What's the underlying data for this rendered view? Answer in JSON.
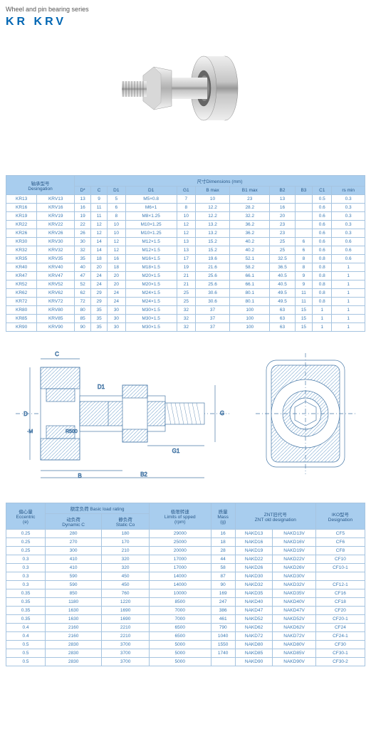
{
  "page": {
    "subtitle": "Wheel and pin bearing series",
    "title": "KR   KRV"
  },
  "table1": {
    "colors": {
      "header_bg": "#a8cdee",
      "border": "#a6c4e0",
      "text": "#3a7ab5"
    },
    "group_headers": {
      "designation": "轴承型号\nDesingation",
      "dimensions": "尺寸Dimensions (mm)"
    },
    "columns": [
      "D*",
      "C",
      "D1",
      "D1",
      "G1",
      "B max",
      "B1 max",
      "B2",
      "B3",
      "C1",
      "rs min"
    ],
    "rows": [
      [
        "KR13",
        "KRV13",
        "13",
        "9",
        "5",
        "M5×0.8",
        "7",
        "10",
        "23",
        "13",
        "",
        "0.5",
        "0.3"
      ],
      [
        "KR16",
        "KRV16",
        "16",
        "11",
        "6",
        "M6×1",
        "8",
        "12.2",
        "28.2",
        "16",
        "",
        "0.6",
        "0.3"
      ],
      [
        "KR19",
        "KRV19",
        "19",
        "11",
        "8",
        "M8×1.25",
        "10",
        "12.2",
        "32.2",
        "20",
        "",
        "0.6",
        "0.3"
      ],
      [
        "KR22",
        "KRV22",
        "22",
        "12",
        "10",
        "M10×1.25",
        "12",
        "13.2",
        "36.2",
        "23",
        "",
        "0.6",
        "0.3"
      ],
      [
        "KR26",
        "KRV26",
        "26",
        "12",
        "10",
        "M10×1.25",
        "12",
        "13.2",
        "36.2",
        "23",
        "",
        "0.6",
        "0.3"
      ],
      [
        "KR30",
        "KRV30",
        "30",
        "14",
        "12",
        "M12×1.5",
        "13",
        "15.2",
        "40.2",
        "25",
        "6",
        "0.6",
        "0.6"
      ],
      [
        "KR32",
        "KRV32",
        "32",
        "14",
        "12",
        "M12×1.5",
        "13",
        "15.2",
        "40.2",
        "25",
        "6",
        "0.6",
        "0.6"
      ],
      [
        "KR35",
        "KRV35",
        "35",
        "18",
        "16",
        "M16×1.5",
        "17",
        "19.6",
        "52.1",
        "32.5",
        "8",
        "0.8",
        "0.6"
      ],
      [
        "KR40",
        "KRV40",
        "40",
        "20",
        "18",
        "M18×1.5",
        "19",
        "21.6",
        "58.2",
        "36.5",
        "8",
        "0.8",
        "1"
      ],
      [
        "KR47",
        "KRV47",
        "47",
        "24",
        "20",
        "M20×1.5",
        "21",
        "25.6",
        "66.1",
        "40.5",
        "9",
        "0.8",
        "1"
      ],
      [
        "KR52",
        "KRV52",
        "52",
        "24",
        "20",
        "M20×1.5",
        "21",
        "25.6",
        "66.1",
        "40.5",
        "9",
        "0.8",
        "1"
      ],
      [
        "KR62",
        "KRV62",
        "62",
        "29",
        "24",
        "M24×1.5",
        "25",
        "30.6",
        "80.1",
        "49.5",
        "11",
        "0.8",
        "1"
      ],
      [
        "KR72",
        "KRV72",
        "72",
        "29",
        "24",
        "M24×1.5",
        "25",
        "30.6",
        "80.1",
        "49.5",
        "11",
        "0.8",
        "1"
      ],
      [
        "KR80",
        "KRV80",
        "80",
        "35",
        "30",
        "M30×1.5",
        "32",
        "37",
        "100",
        "63",
        "15",
        "1",
        "1"
      ],
      [
        "KR85",
        "KRV85",
        "85",
        "35",
        "30",
        "M30×1.5",
        "32",
        "37",
        "100",
        "63",
        "15",
        "1",
        "1"
      ],
      [
        "KR90",
        "KRV90",
        "90",
        "35",
        "30",
        "M30×1.5",
        "32",
        "37",
        "100",
        "63",
        "15",
        "1",
        "1"
      ]
    ]
  },
  "diagram": {
    "labels": [
      "C",
      "D",
      "B",
      "G",
      "G1",
      "D1",
      "B2",
      "R500",
      "·M"
    ],
    "colors": {
      "hatch": "#7aa7d0",
      "line": "#4a7aa8"
    }
  },
  "table2": {
    "group_headers": {
      "eccentric": "偏心量\nEccentric\n(e)",
      "load": "额定负荷 Basic load rating",
      "dynamic": "动负荷\nDynamic C",
      "static": "静负荷\nStatic Co",
      "speed": "极限转速\nLimits of spped\n(rpm)",
      "mass": "质量\nMass\n(g)",
      "znt": "ZNT旧代号\nZNT old designation",
      "iko": "IKO型号\nDesignation"
    },
    "rows": [
      [
        "0.25",
        "280",
        "180",
        "29000",
        "16",
        "NAKD13",
        "NAKD13V",
        "CF5"
      ],
      [
        "0.25",
        "270",
        "170",
        "25000",
        "18",
        "NAKD16",
        "NAKD16V",
        "CF6"
      ],
      [
        "0.25",
        "300",
        "210",
        "20000",
        "28",
        "NAKD19",
        "NAKD19V",
        "CF8"
      ],
      [
        "0.3",
        "410",
        "320",
        "17000",
        "44",
        "NAKD22",
        "NAKD22V",
        "CF10"
      ],
      [
        "0.3",
        "410",
        "320",
        "17000",
        "58",
        "NAKD26",
        "NAKD26V",
        "CF10-1"
      ],
      [
        "0.3",
        "590",
        "450",
        "14000",
        "87",
        "NAKD30",
        "NAKD30V",
        ""
      ],
      [
        "0.3",
        "590",
        "450",
        "14000",
        "90",
        "NAKD32",
        "NAKD32V",
        "CF12-1"
      ],
      [
        "0.35",
        "850",
        "760",
        "10000",
        "169",
        "NAKD35",
        "NAKD35V",
        "CF16"
      ],
      [
        "0.35",
        "1180",
        "1220",
        "8500",
        "247",
        "NAKD40",
        "NAKD40V",
        "CF18"
      ],
      [
        "0.35",
        "1630",
        "1690",
        "7000",
        "386",
        "NAKD47",
        "NAKD47V",
        "CF20"
      ],
      [
        "0.35",
        "1630",
        "1690",
        "7000",
        "461",
        "NAKD52",
        "NAKD52V",
        "CF20-1"
      ],
      [
        "0.4",
        "2160",
        "2210",
        "6500",
        "790",
        "NAKD62",
        "NAKD62V",
        "CF24"
      ],
      [
        "0.4",
        "2160",
        "2210",
        "6500",
        "1040",
        "NAKD72",
        "NAKD72V",
        "CF24-1"
      ],
      [
        "0.5",
        "2830",
        "3700",
        "5000",
        "1550",
        "NAKD80",
        "NAKD80V",
        "CF30"
      ],
      [
        "0.5",
        "2830",
        "3700",
        "5000",
        "1740",
        "NAKD85",
        "NAKD85V",
        "CF30-1"
      ],
      [
        "0.5",
        "2830",
        "3700",
        "5000",
        "",
        "NAKD90",
        "NAKD90V",
        "CF30-2"
      ]
    ]
  }
}
